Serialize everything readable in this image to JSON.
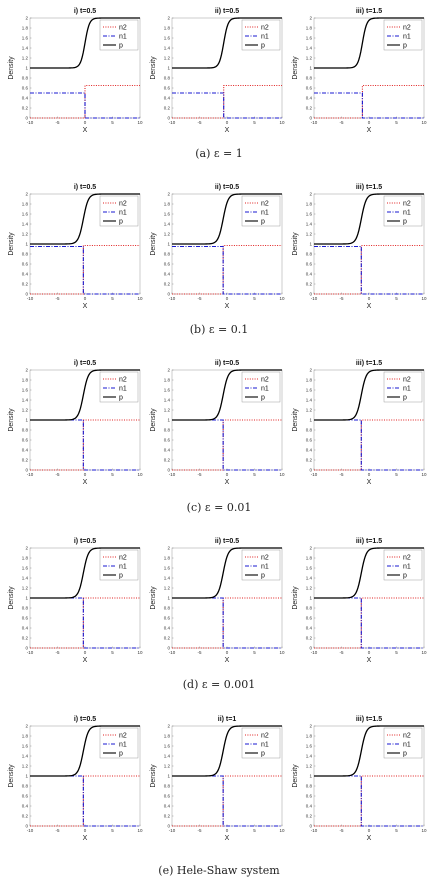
{
  "figure": {
    "panel_groups": [
      {
        "caption": "(a) ε = 1",
        "panels": [
          {
            "title": "i) t=0.5",
            "front": 0.0
          },
          {
            "title": "ii) t=0.5",
            "front": -0.6
          },
          {
            "title": "iii) t=1.5",
            "front": -1.2
          }
        ],
        "n_left": 0.5,
        "n_right_top": 0.65,
        "p_low": 1.0,
        "p_high": 2.0,
        "p_width": 0.4,
        "steep": false
      },
      {
        "caption": "(b) ε = 0.1",
        "panels": [
          {
            "title": "i) t=0.5",
            "front": -0.3
          },
          {
            "title": "ii) t=0.5",
            "front": -0.7
          },
          {
            "title": "iii) t=1.5",
            "front": -1.4
          }
        ],
        "n_left": 0.95,
        "n_right_top": 0.97,
        "p_low": 1.0,
        "p_high": 2.0,
        "p_width": 0.45,
        "steep": true
      },
      {
        "caption": "(c) ε = 0.01",
        "panels": [
          {
            "title": "i) t=0.5",
            "front": -0.3
          },
          {
            "title": "ii) t=0.5",
            "front": -0.7
          },
          {
            "title": "iii) t=1.5",
            "front": -1.4
          }
        ],
        "n_left": 1.0,
        "n_right_top": 1.0,
        "p_low": 1.0,
        "p_high": 2.0,
        "p_width": 0.45,
        "steep": true
      },
      {
        "caption": "(d) ε = 0.001",
        "panels": [
          {
            "title": "i) t=0.5",
            "front": -0.3
          },
          {
            "title": "ii) t=0.5",
            "front": -0.7
          },
          {
            "title": "iii) t=1.5",
            "front": -1.4
          }
        ],
        "n_left": 1.0,
        "n_right_top": 1.0,
        "p_low": 1.0,
        "p_high": 2.0,
        "p_width": 0.45,
        "steep": true
      },
      {
        "caption": "(e) Hele-Shaw system",
        "panels": [
          {
            "title": "i) t=0.5",
            "front": -0.3
          },
          {
            "title": "ii) t=1",
            "front": -0.7
          },
          {
            "title": "iii) t=1.5",
            "front": -1.4
          }
        ],
        "n_left": 1.0,
        "n_right_top": 1.0,
        "p_low": 1.0,
        "p_high": 2.0,
        "p_width": 0.45,
        "steep": true
      }
    ]
  },
  "chart_data": {
    "type": "line",
    "xlabel": "X",
    "ylabel": "Density",
    "xlim": [
      -10,
      10
    ],
    "ylim": [
      0,
      2
    ],
    "xticks": [
      "-10",
      "-5",
      "0",
      "5",
      "10"
    ],
    "yticks": [
      "0",
      "0.2",
      "0.4",
      "0.6",
      "0.8",
      "1",
      "1.2",
      "1.4",
      "1.6",
      "1.8",
      "2"
    ],
    "legend": [
      "n2",
      "n1",
      "p"
    ],
    "legend_position": "top-right",
    "series_colors": {
      "n2": "#e02020",
      "n1": "#1a1ad0",
      "p": "#000000"
    },
    "series_styles": {
      "n2": "dotted",
      "n1": "dash-dot",
      "p": "solid"
    },
    "description_per_panel": "n1 = left value for x < front, 0 after; n2 = 0 for x < front, right value after; p sigmoid from 1 to 2 across the front"
  }
}
